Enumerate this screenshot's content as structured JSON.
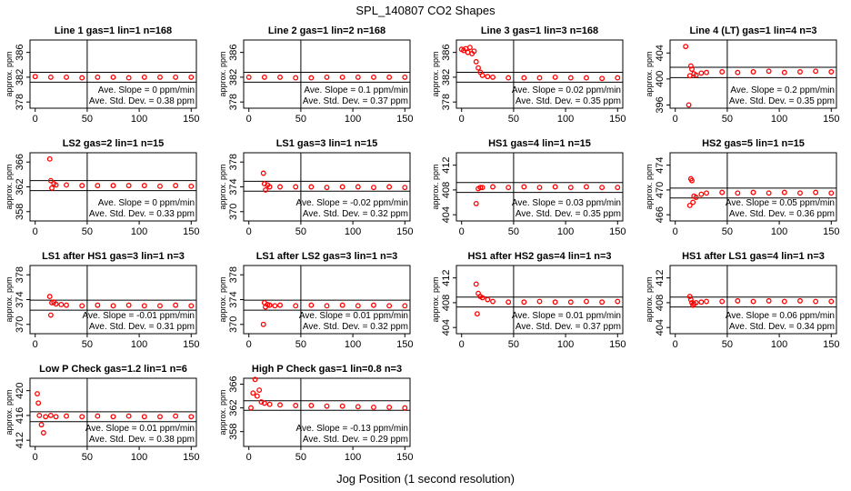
{
  "figure": {
    "title": "SPL_140807  CO2 Shapes",
    "xlabel": "Jog Position (1 second resolution)"
  },
  "colors": {
    "points": "#ff0000",
    "axes": "#000000"
  },
  "chart_data": [
    {
      "type": "scatter",
      "title": "Line 1 gas=1 lin=1 n=168",
      "ylabel": "approx. ppm",
      "xlim": [
        -5,
        155
      ],
      "ylim": [
        377,
        388
      ],
      "yticks": [
        378,
        382,
        386
      ],
      "xticks": [
        0,
        50,
        100,
        150
      ],
      "refline_x": 50,
      "hlines": [
        382.8,
        381.2
      ],
      "slope_text": "Ave. Slope = 0 ppm/min",
      "std_text": "Ave. Std. Dev. = 0.38 ppm",
      "x": [
        0,
        15,
        30,
        45,
        60,
        75,
        90,
        105,
        120,
        135,
        150
      ],
      "y": [
        382.1,
        382.0,
        382.0,
        381.9,
        382.0,
        382.0,
        381.9,
        382.0,
        382.0,
        382.0,
        382.0
      ]
    },
    {
      "type": "scatter",
      "title": "Line 2 gas=1 lin=2 n=168",
      "ylabel": "approx. ppm",
      "xlim": [
        -5,
        155
      ],
      "ylim": [
        377,
        388
      ],
      "yticks": [
        378,
        382,
        386
      ],
      "xticks": [
        0,
        50,
        100,
        150
      ],
      "refline_x": 50,
      "hlines": [
        382.8,
        381.2
      ],
      "slope_text": "Ave. Slope = 0.1 ppm/min",
      "std_text": "Ave. Std. Dev. = 0.37 ppm",
      "x": [
        0,
        15,
        30,
        45,
        60,
        75,
        90,
        105,
        120,
        135,
        150
      ],
      "y": [
        382.0,
        382.0,
        382.0,
        381.9,
        381.9,
        382.0,
        382.0,
        382.0,
        382.0,
        382.0,
        382.0
      ]
    },
    {
      "type": "scatter",
      "title": "Line 3 gas=1 lin=3 n=168",
      "ylabel": "approx. ppm",
      "xlim": [
        -5,
        155
      ],
      "ylim": [
        377,
        388
      ],
      "yticks": [
        378,
        382,
        386
      ],
      "xticks": [
        0,
        50,
        100,
        150
      ],
      "refline_x": 50,
      "hlines": [
        382.8,
        381.2
      ],
      "slope_text": "Ave. Slope = 0.02 ppm/min",
      "std_text": "Ave. Std. Dev. = 0.35 ppm",
      "x": [
        0,
        2,
        4,
        6,
        8,
        10,
        12,
        14,
        16,
        18,
        20,
        25,
        30,
        45,
        60,
        75,
        90,
        105,
        120,
        135,
        150
      ],
      "y": [
        386.5,
        386.3,
        386.6,
        386.0,
        386.8,
        385.8,
        386.2,
        384.5,
        383.5,
        382.8,
        382.3,
        382.1,
        382.0,
        381.9,
        381.9,
        381.9,
        382.0,
        381.9,
        381.9,
        381.8,
        381.9
      ]
    },
    {
      "type": "scatter",
      "title": "Line 4 (LT) gas=1 lin=4 n=3",
      "ylabel": "approx. ppm",
      "xlim": [
        -5,
        155
      ],
      "ylim": [
        395.5,
        406
      ],
      "yticks": [
        396,
        400,
        404
      ],
      "xticks": [
        0,
        50,
        100,
        150
      ],
      "refline_x": 50,
      "hlines": [
        401.8,
        400.2
      ],
      "slope_text": "Ave. Slope = 0.2 ppm/min",
      "std_text": "Ave. Std. Dev. = 0.35 ppm",
      "x": [
        10,
        13,
        14,
        15,
        16,
        18,
        20,
        25,
        30,
        45,
        60,
        75,
        90,
        105,
        120,
        135,
        150
      ],
      "y": [
        405.0,
        396.0,
        400.5,
        402.0,
        401.5,
        400.8,
        400.6,
        400.9,
        401.0,
        401.1,
        401.0,
        401.1,
        401.2,
        401.0,
        401.1,
        401.2,
        401.1
      ]
    },
    {
      "type": "scatter",
      "title": "LS2 gas=2 lin=1 n=15",
      "ylabel": "approx. ppm",
      "xlim": [
        -5,
        155
      ],
      "ylim": [
        356.5,
        367.5
      ],
      "yticks": [
        358,
        362,
        366
      ],
      "xticks": [
        0,
        50,
        100,
        150
      ],
      "refline_x": 50,
      "hlines": [
        363.0,
        361.4
      ],
      "slope_text": "Ave. Slope = 0 ppm/min",
      "std_text": "Ave. Std. Dev. = 0.33 ppm",
      "x": [
        14,
        15,
        16,
        18,
        20,
        30,
        45,
        60,
        75,
        90,
        105,
        120,
        135,
        150
      ],
      "y": [
        366.5,
        363.0,
        361.8,
        362.5,
        362.3,
        362.3,
        362.2,
        362.2,
        362.2,
        362.2,
        362.2,
        362.1,
        362.2,
        362.1
      ]
    },
    {
      "type": "scatter",
      "title": "LS1 gas=3 lin=1 n=15",
      "ylabel": "approx. ppm",
      "xlim": [
        -5,
        155
      ],
      "ylim": [
        368.5,
        379.5
      ],
      "yticks": [
        370,
        374,
        378
      ],
      "xticks": [
        0,
        50,
        100,
        150
      ],
      "refline_x": 50,
      "hlines": [
        374.9,
        373.3
      ],
      "slope_text": "Ave. Slope = -0.02 ppm/min",
      "std_text": "Ave. Std. Dev. = 0.32 ppm",
      "x": [
        14,
        15,
        16,
        18,
        20,
        30,
        45,
        60,
        75,
        90,
        105,
        120,
        135,
        150
      ],
      "y": [
        376.2,
        374.5,
        373.5,
        374.3,
        374.0,
        374.0,
        374.0,
        374.0,
        373.9,
        374.0,
        374.0,
        373.9,
        374.0,
        373.9
      ]
    },
    {
      "type": "scatter",
      "title": "HS1 gas=4 lin=1 n=15",
      "ylabel": "approx. ppm",
      "xlim": [
        -5,
        155
      ],
      "ylim": [
        403,
        414
      ],
      "yticks": [
        404,
        408,
        412
      ],
      "xticks": [
        0,
        50,
        100,
        150
      ],
      "refline_x": 50,
      "hlines": [
        409.2,
        407.6
      ],
      "slope_text": "Ave. Slope = 0.03 ppm/min",
      "std_text": "Ave. Std. Dev. = 0.35 ppm",
      "x": [
        14,
        16,
        18,
        20,
        30,
        45,
        60,
        75,
        90,
        105,
        120,
        135,
        150
      ],
      "y": [
        405.8,
        408.2,
        408.4,
        408.4,
        408.5,
        408.4,
        408.5,
        408.4,
        408.5,
        408.4,
        408.5,
        408.4,
        408.4
      ]
    },
    {
      "type": "scatter",
      "title": "HS2 gas=5 lin=1 n=15",
      "ylabel": "approx. ppm",
      "xlim": [
        -5,
        155
      ],
      "ylim": [
        465,
        476
      ],
      "yticks": [
        466,
        470,
        474
      ],
      "xticks": [
        0,
        50,
        100,
        150
      ],
      "refline_x": 50,
      "hlines": [
        470.3,
        468.7
      ],
      "slope_text": "Ave. Slope = 0.05 ppm/min",
      "std_text": "Ave. Std. Dev. = 0.36 ppm",
      "x": [
        14,
        15,
        16,
        17,
        18,
        20,
        25,
        30,
        45,
        60,
        75,
        90,
        105,
        120,
        135,
        150
      ],
      "y": [
        467.5,
        471.8,
        471.5,
        468.0,
        469.0,
        468.8,
        469.3,
        469.5,
        469.6,
        469.5,
        469.6,
        469.5,
        469.6,
        469.5,
        469.6,
        469.5
      ]
    },
    {
      "type": "scatter",
      "title": "LS1 after HS1 gas=3 lin=1 n=3",
      "ylabel": "approx. ppm",
      "xlim": [
        -5,
        155
      ],
      "ylim": [
        368.5,
        379.5
      ],
      "yticks": [
        370,
        374,
        378
      ],
      "xticks": [
        0,
        50,
        100,
        150
      ],
      "refline_x": 50,
      "hlines": [
        373.9,
        372.3
      ],
      "slope_text": "Ave. Slope = -0.01 ppm/min",
      "std_text": "Ave. Std. Dev. = 0.31 ppm",
      "x": [
        14,
        15,
        16,
        18,
        20,
        25,
        30,
        45,
        60,
        75,
        90,
        105,
        120,
        135,
        150
      ],
      "y": [
        374.5,
        371.5,
        373.5,
        373.6,
        373.3,
        373.2,
        373.1,
        373.0,
        373.1,
        373.0,
        373.1,
        373.0,
        373.0,
        373.1,
        373.0
      ]
    },
    {
      "type": "scatter",
      "title": "LS1 after LS2 gas=3 lin=1 n=3",
      "ylabel": "approx. ppm",
      "xlim": [
        -5,
        155
      ],
      "ylim": [
        368.5,
        379.5
      ],
      "yticks": [
        370,
        374,
        378
      ],
      "xticks": [
        0,
        50,
        100,
        150
      ],
      "refline_x": 50,
      "hlines": [
        373.9,
        372.3
      ],
      "slope_text": "Ave. Slope = 0.01 ppm/min",
      "std_text": "Ave. Std. Dev. = 0.32 ppm",
      "x": [
        14,
        15,
        16,
        18,
        20,
        25,
        30,
        45,
        60,
        75,
        90,
        105,
        120,
        135,
        150
      ],
      "y": [
        370.0,
        373.5,
        372.8,
        373.2,
        373.1,
        373.0,
        373.1,
        373.0,
        373.1,
        373.0,
        373.1,
        373.0,
        373.1,
        373.0,
        373.0
      ]
    },
    {
      "type": "scatter",
      "title": "HS1 after HS2 gas=4 lin=1 n=3",
      "ylabel": "approx. ppm",
      "xlim": [
        -5,
        155
      ],
      "ylim": [
        403,
        414
      ],
      "yticks": [
        404,
        408,
        412
      ],
      "xticks": [
        0,
        50,
        100,
        150
      ],
      "refline_x": 50,
      "hlines": [
        408.9,
        407.3
      ],
      "slope_text": "Ave. Slope = 0.01 ppm/min",
      "std_text": "Ave. Std. Dev. = 0.37 ppm",
      "x": [
        14,
        15,
        16,
        18,
        20,
        25,
        30,
        45,
        60,
        75,
        90,
        105,
        120,
        135,
        150
      ],
      "y": [
        411.0,
        406.2,
        409.5,
        409.0,
        408.8,
        408.5,
        408.2,
        408.1,
        408.1,
        408.2,
        408.1,
        408.1,
        408.2,
        408.1,
        408.2
      ]
    },
    {
      "type": "scatter",
      "title": "HS1 after LS1 gas=4 lin=1 n=3",
      "ylabel": "approx. ppm",
      "xlim": [
        -5,
        155
      ],
      "ylim": [
        403,
        414
      ],
      "yticks": [
        404,
        408,
        412
      ],
      "xticks": [
        0,
        50,
        100,
        150
      ],
      "refline_x": 50,
      "hlines": [
        408.9,
        407.3
      ],
      "slope_text": "Ave. Slope = 0.06 ppm/min",
      "std_text": "Ave. Std. Dev. = 0.34 ppm",
      "x": [
        14,
        15,
        16,
        17,
        18,
        20,
        25,
        30,
        45,
        60,
        75,
        90,
        105,
        120,
        135,
        150
      ],
      "y": [
        409.0,
        408.5,
        408.0,
        407.6,
        407.8,
        408.0,
        408.1,
        408.2,
        408.2,
        408.3,
        408.2,
        408.3,
        408.2,
        408.3,
        408.2,
        408.2
      ]
    },
    {
      "type": "scatter",
      "title": "Low P Check gas=1.2 lin=1 n=6",
      "ylabel": "approx. ppm",
      "xlim": [
        -5,
        155
      ],
      "ylim": [
        411,
        422
      ],
      "yticks": [
        412,
        416,
        420
      ],
      "xticks": [
        0,
        50,
        100,
        150
      ],
      "refline_x": 50,
      "hlines": [
        416.6,
        415.0
      ],
      "slope_text": "Ave. Slope = 0.01 ppm/min",
      "std_text": "Ave. Std. Dev. = 0.38 ppm",
      "x": [
        2,
        3,
        4,
        6,
        8,
        10,
        15,
        20,
        30,
        45,
        60,
        75,
        90,
        105,
        120,
        135,
        150
      ],
      "y": [
        419.5,
        418.0,
        416.0,
        414.5,
        413.2,
        415.8,
        416.0,
        415.8,
        415.9,
        415.8,
        415.9,
        415.8,
        415.9,
        415.8,
        415.8,
        415.9,
        415.8
      ]
    },
    {
      "type": "scatter",
      "title": "High P Check gas=1 lin=0.8 n=3",
      "ylabel": "approx. ppm",
      "xlim": [
        -5,
        155
      ],
      "ylim": [
        355.5,
        367
      ],
      "yticks": [
        358,
        362,
        366
      ],
      "xticks": [
        0,
        50,
        100,
        150
      ],
      "refline_x": 50,
      "hlines": [
        363.2,
        361.6
      ],
      "slope_text": "Ave. Slope = -0.13 ppm/min",
      "std_text": "Ave. Std. Dev. = 0.29 ppm",
      "x": [
        2,
        4,
        6,
        8,
        10,
        12,
        15,
        20,
        30,
        45,
        60,
        75,
        90,
        105,
        120,
        135,
        150
      ],
      "y": [
        362.0,
        364.5,
        366.8,
        364.0,
        365.0,
        363.0,
        362.8,
        362.6,
        362.5,
        362.4,
        362.4,
        362.3,
        362.3,
        362.2,
        362.1,
        362.1,
        362.0
      ]
    }
  ]
}
